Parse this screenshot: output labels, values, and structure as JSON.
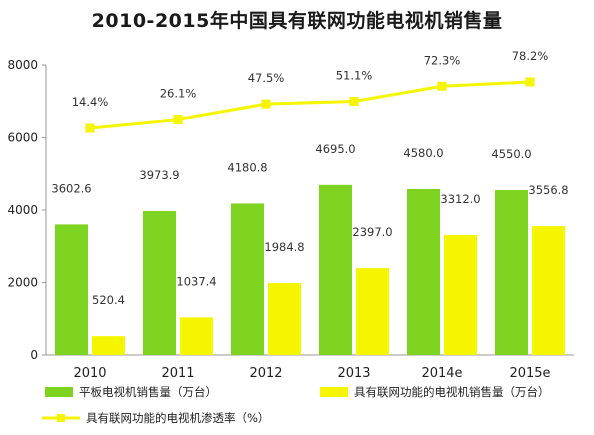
{
  "chart_data": {
    "type": "bar",
    "title": "2010-2015年中国具有联网功能电视机销售量",
    "categories": [
      "2010",
      "2011",
      "2012",
      "2013",
      "2014e",
      "2015e"
    ],
    "ylim": [
      0,
      8000
    ],
    "yticks": [
      "0",
      "2000",
      "4000",
      "6000",
      "8000"
    ],
    "grid": false,
    "legend_position": "bottom",
    "series": [
      {
        "name": "平板电视机销售量（万台）",
        "kind": "bar",
        "color": "#7ED321",
        "values": [
          3602.6,
          3973.9,
          4180.8,
          4695.0,
          4580.0,
          4550.0
        ],
        "labels": [
          "3602.6",
          "3973.9",
          "4180.8",
          "4695.0",
          "4580.0",
          "4550.0"
        ]
      },
      {
        "name": "具有联网功能的电视机销售量（万台）",
        "kind": "bar",
        "color": "#F5F500",
        "values": [
          520.4,
          1037.4,
          1984.8,
          2397.0,
          3312.0,
          3556.8
        ],
        "labels": [
          "520.4",
          "1037.4",
          "1984.8",
          "2397.0",
          "3312.0",
          "3556.8"
        ]
      },
      {
        "name": "具有联网功能的电视机渗透率（%）",
        "kind": "line",
        "color": "#F5F500",
        "values": [
          14.4,
          26.1,
          47.5,
          51.1,
          72.3,
          78.2
        ],
        "labels": [
          "14.4%",
          "26.1%",
          "47.5%",
          "51.1%",
          "72.3%",
          "78.2%"
        ]
      }
    ]
  }
}
